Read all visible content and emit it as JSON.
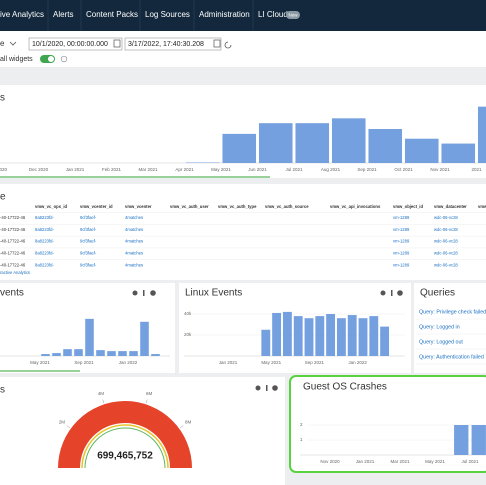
{
  "nav": {
    "items": [
      "ive Analytics",
      "Alerts",
      "Content Packs",
      "Log Sources",
      "Administration",
      "LI Cloud"
    ],
    "badge": "New"
  },
  "toolbar": {
    "prefix": "e",
    "start": "10/1/2020, 00:00:00.000",
    "end": "3/17/2022, 17:40:30.208",
    "toggle_label": "all widgets"
  },
  "trend": {
    "title": "s",
    "type": "bar",
    "color": "#74a0df",
    "categories": [
      "2020",
      "Dec 2020",
      "Jan 2021",
      "Feb 2021",
      "Mar 2021",
      "Apr 2021",
      "May 2021",
      "Jun 2021",
      "Jul 2021",
      "Aug 2021",
      "Sep 2021",
      "Oct 2021",
      "Nov 2021",
      "2021"
    ],
    "values": [
      0,
      0,
      0,
      0,
      0,
      0.5,
      30,
      41,
      41,
      46,
      35,
      25,
      20,
      58
    ],
    "ylim": [
      0,
      70
    ]
  },
  "table": {
    "title": "e",
    "headers": [
      null,
      "vmw_vc_ops_id",
      "vmw_vcenter_id",
      "vmw_vcenter",
      "vmw_vc_auth_user",
      "vmw_vc_auth_type",
      "vmw_vc_auth_source",
      "vmw_vc_api_invocations",
      "vmw_object_id",
      "vmw_datacenter",
      "vmw"
    ],
    "rows": [
      [
        "-40-17722-46",
        "8a8223fd-",
        "9cf3faef-",
        "4matches",
        null,
        null,
        null,
        null,
        "vm-1289",
        "wdc-06-vc28",
        null
      ],
      [
        "-40-17722-46",
        "8a8223fd-",
        "9cf3faef-",
        "4matches",
        null,
        null,
        null,
        null,
        "vm-1289",
        "wdc-06-vc28",
        null
      ],
      [
        "-40-17722-46",
        "8a8223fd-",
        "9cf3faef-",
        "4matches",
        null,
        null,
        null,
        null,
        "vm-1289",
        "wdc-06-vc28",
        null
      ],
      [
        "-40-17722-46",
        "8a8223fd-",
        "9cf3faef-",
        "4matches",
        null,
        null,
        null,
        null,
        "vm-1289",
        "wdc-06-vc28",
        null
      ],
      [
        "-40-17722-46",
        "8a8223fd-",
        "9cf3faef-",
        "4matches",
        null,
        null,
        null,
        null,
        "vm-1289",
        "wdc-06-vc28",
        null
      ]
    ],
    "link": "ractive Analytics"
  },
  "events": {
    "title": "vents",
    "type": "bar",
    "color": "#74a0df",
    "categories": [
      "May 2021",
      null,
      null,
      null,
      "Sep 2021",
      null,
      null,
      null,
      "Jan 2022",
      null,
      null
    ],
    "values": [
      2,
      3,
      7,
      7,
      38,
      6,
      5,
      5,
      5,
      35,
      2
    ],
    "ylim": [
      0,
      45
    ]
  },
  "linux": {
    "title": "Linux Events",
    "type": "bar",
    "color": "#74a0df",
    "categories": [
      "Jan 2021",
      null,
      null,
      null,
      "May 2021",
      null,
      null,
      null,
      "Sep 2021",
      null,
      null,
      null,
      "Jan 2022",
      null,
      null
    ],
    "values": [
      0,
      0,
      0,
      25000,
      41000,
      42000,
      38000,
      36000,
      38000,
      40000,
      36000,
      39000,
      36000,
      38000,
      28000
    ],
    "ylim": [
      0,
      40000
    ],
    "yticks": [
      {
        "value": 40000,
        "label": "40k"
      },
      {
        "value": 20000,
        "label": "20k"
      }
    ]
  },
  "queries": {
    "title": "Queries",
    "items": [
      "Query: Privilege check failed",
      "Query: Logged in",
      "Query: Logged out",
      "Query: Authentication failed"
    ]
  },
  "gauge": {
    "title": "s",
    "value": "699,465,752",
    "lim": [
      0,
      10000000
    ],
    "ticks": [
      {
        "value": 2000000,
        "label": "2M"
      },
      {
        "value": 4000000,
        "label": "4M"
      },
      {
        "value": 6000000,
        "label": "6M"
      },
      {
        "value": 8000000,
        "label": "8M"
      }
    ]
  },
  "crashes": {
    "title": "Guest OS Crashes",
    "type": "bar",
    "color": "#74a0df",
    "categories": [
      "Nov 2020",
      null,
      "Jan 2021",
      null,
      "Mar 2021",
      null,
      "May 2021",
      null,
      "Jul 2021"
    ],
    "values": [
      0,
      0,
      0,
      0,
      0,
      0,
      0,
      2,
      2
    ],
    "ylim": [
      0,
      2
    ],
    "yticks": [
      2,
      1
    ]
  }
}
